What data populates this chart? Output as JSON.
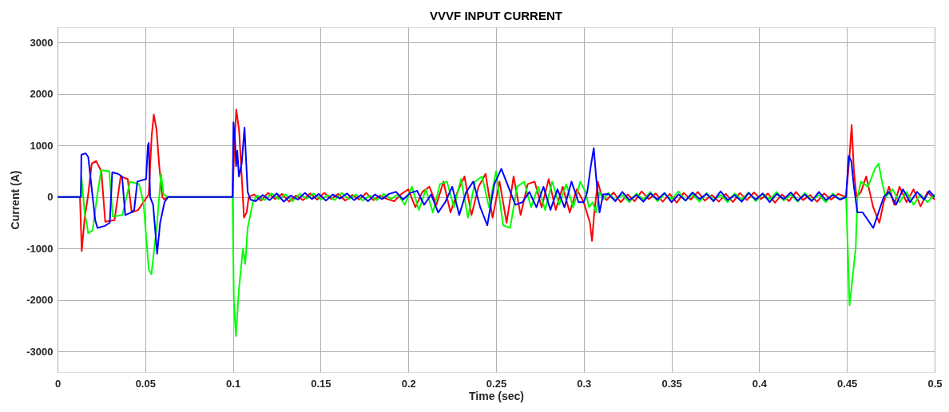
{
  "chart_data": {
    "type": "line",
    "title": "VVVF INPUT CURRENT",
    "xlabel": "Time (sec)",
    "ylabel": "Current (A)",
    "xlim": [
      0,
      0.5
    ],
    "xticks": [
      0,
      0.05,
      0.1,
      0.15,
      0.2,
      0.25,
      0.3,
      0.35,
      0.4,
      0.45,
      0.5
    ],
    "ylim": [
      -3400,
      3300
    ],
    "yticks": [
      -3000,
      -2000,
      -1000,
      0,
      1000,
      2000,
      3000
    ],
    "grid": true,
    "legend": false,
    "marker": "none",
    "line_style": "solid",
    "series": [
      {
        "color": "#ff0000",
        "x": [
          0,
          0.0128,
          0.0138,
          0.0155,
          0.0173,
          0.0195,
          0.022,
          0.025,
          0.0272,
          0.0325,
          0.036,
          0.04,
          0.0423,
          0.046,
          0.049,
          0.052,
          0.0537,
          0.0549,
          0.0565,
          0.058,
          0.0598,
          0.061,
          0.063,
          0.0998,
          0.1008,
          0.1019,
          0.1035,
          0.105,
          0.1063,
          0.1078,
          0.109,
          0.112,
          0.116,
          0.12,
          0.124,
          0.128,
          0.132,
          0.136,
          0.14,
          0.144,
          0.148,
          0.152,
          0.156,
          0.16,
          0.164,
          0.168,
          0.172,
          0.176,
          0.18,
          0.184,
          0.188,
          0.192,
          0.196,
          0.2,
          0.204,
          0.208,
          0.212,
          0.216,
          0.22,
          0.224,
          0.228,
          0.232,
          0.236,
          0.24,
          0.244,
          0.248,
          0.252,
          0.256,
          0.26,
          0.264,
          0.268,
          0.272,
          0.276,
          0.28,
          0.284,
          0.288,
          0.292,
          0.296,
          0.3,
          0.3035,
          0.3047,
          0.306,
          0.308,
          0.31,
          0.313,
          0.317,
          0.321,
          0.325,
          0.329,
          0.333,
          0.337,
          0.341,
          0.345,
          0.349,
          0.353,
          0.357,
          0.361,
          0.365,
          0.369,
          0.373,
          0.377,
          0.381,
          0.385,
          0.389,
          0.393,
          0.397,
          0.401,
          0.405,
          0.409,
          0.413,
          0.417,
          0.421,
          0.425,
          0.429,
          0.433,
          0.437,
          0.441,
          0.445,
          0.4495,
          0.4515,
          0.4527,
          0.454,
          0.4555,
          0.458,
          0.461,
          0.465,
          0.4685,
          0.471,
          0.474,
          0.477,
          0.48,
          0.484,
          0.488,
          0.492,
          0.496,
          0.5
        ],
        "values": [
          0,
          0,
          -1050,
          -400,
          0,
          650,
          700,
          500,
          -480,
          -450,
          400,
          350,
          -300,
          -250,
          -100,
          50,
          1200,
          1600,
          1300,
          600,
          0,
          -50,
          0,
          0,
          1000,
          1700,
          1300,
          400,
          -400,
          -300,
          0,
          50,
          -70,
          80,
          -40,
          60,
          -90,
          30,
          -60,
          70,
          -50,
          80,
          -40,
          60,
          -70,
          40,
          -50,
          80,
          -60,
          30,
          -40,
          -80,
          60,
          150,
          -200,
          100,
          200,
          -150,
          300,
          -300,
          100,
          400,
          -350,
          200,
          450,
          -400,
          300,
          -500,
          400,
          -350,
          250,
          300,
          -200,
          350,
          -250,
          200,
          -300,
          150,
          -100,
          -500,
          -850,
          -300,
          300,
          50,
          -60,
          90,
          -100,
          50,
          -80,
          110,
          -40,
          70,
          -90,
          60,
          -110,
          80,
          -50,
          100,
          -70,
          40,
          -90,
          60,
          -100,
          80,
          -60,
          90,
          -40,
          70,
          -110,
          50,
          -80,
          100,
          -60,
          40,
          -90,
          70,
          -50,
          60,
          0,
          800,
          1400,
          500,
          0,
          100,
          400,
          -200,
          -500,
          -100,
          200,
          -150,
          200,
          -100,
          150,
          -180,
          100,
          -50
        ]
      },
      {
        "color": "#00ff00",
        "x": [
          0,
          0.0133,
          0.0136,
          0.0155,
          0.0175,
          0.02,
          0.0225,
          0.0249,
          0.0295,
          0.0315,
          0.037,
          0.0413,
          0.0465,
          0.049,
          0.052,
          0.0535,
          0.0568,
          0.059,
          0.0605,
          0.063,
          0.0998,
          0.1005,
          0.1017,
          0.1034,
          0.1057,
          0.107,
          0.1084,
          0.1114,
          0.114,
          0.118,
          0.122,
          0.126,
          0.13,
          0.134,
          0.138,
          0.142,
          0.146,
          0.15,
          0.154,
          0.158,
          0.162,
          0.166,
          0.17,
          0.174,
          0.178,
          0.182,
          0.186,
          0.19,
          0.194,
          0.198,
          0.202,
          0.206,
          0.21,
          0.214,
          0.218,
          0.222,
          0.226,
          0.23,
          0.234,
          0.238,
          0.242,
          0.246,
          0.25,
          0.254,
          0.258,
          0.262,
          0.266,
          0.27,
          0.274,
          0.278,
          0.282,
          0.286,
          0.29,
          0.294,
          0.298,
          0.301,
          0.303,
          0.305,
          0.307,
          0.309,
          0.311,
          0.314,
          0.318,
          0.322,
          0.326,
          0.33,
          0.334,
          0.338,
          0.342,
          0.346,
          0.35,
          0.354,
          0.358,
          0.362,
          0.366,
          0.37,
          0.374,
          0.378,
          0.382,
          0.386,
          0.39,
          0.394,
          0.398,
          0.402,
          0.406,
          0.41,
          0.414,
          0.418,
          0.422,
          0.426,
          0.43,
          0.434,
          0.438,
          0.442,
          0.446,
          0.4495,
          0.4505,
          0.4515,
          0.4525,
          0.455,
          0.456,
          0.458,
          0.462,
          0.466,
          0.4681,
          0.47,
          0.472,
          0.476,
          0.48,
          0.484,
          0.488,
          0.492,
          0.496,
          0.5
        ],
        "values": [
          0,
          0,
          400,
          -300,
          -700,
          -650,
          0,
          520,
          500,
          -380,
          -350,
          300,
          250,
          -100,
          -1400,
          -1500,
          -500,
          450,
          50,
          0,
          0,
          -2000,
          -2700,
          -1800,
          -1000,
          -1300,
          -600,
          -100,
          30,
          -60,
          70,
          -40,
          50,
          -80,
          60,
          -30,
          70,
          -50,
          40,
          -60,
          80,
          -40,
          50,
          -70,
          30,
          -60,
          60,
          -40,
          50,
          -150,
          200,
          -250,
          150,
          -300,
          250,
          300,
          -200,
          350,
          -400,
          300,
          400,
          -200,
          500,
          -550,
          -600,
          200,
          300,
          -200,
          200,
          -250,
          300,
          -150,
          250,
          -200,
          300,
          100,
          -200,
          -100,
          -300,
          100,
          -50,
          80,
          -60,
          40,
          -100,
          70,
          -50,
          100,
          -80,
          60,
          -40,
          110,
          -70,
          50,
          -90,
          80,
          -60,
          40,
          -100,
          70,
          -50,
          90,
          -80,
          60,
          -40,
          100,
          -70,
          50,
          -90,
          80,
          -60,
          40,
          -100,
          70,
          -50,
          0,
          -1000,
          -2100,
          -1800,
          -1000,
          0,
          300,
          200,
          550,
          650,
          300,
          0,
          150,
          -100,
          100,
          -150,
          50,
          -100,
          50
        ]
      },
      {
        "color": "#0000ff",
        "x": [
          0,
          0.0133,
          0.0136,
          0.016,
          0.0175,
          0.0215,
          0.0228,
          0.027,
          0.0298,
          0.0312,
          0.0345,
          0.0368,
          0.0386,
          0.042,
          0.0437,
          0.0455,
          0.0475,
          0.0505,
          0.0515,
          0.052,
          0.0528,
          0.0545,
          0.0568,
          0.0585,
          0.061,
          0.063,
          0.0998,
          0.1003,
          0.1012,
          0.1018,
          0.1025,
          0.1034,
          0.105,
          0.1066,
          0.1084,
          0.11,
          0.113,
          0.117,
          0.121,
          0.125,
          0.129,
          0.133,
          0.137,
          0.141,
          0.145,
          0.149,
          0.153,
          0.157,
          0.161,
          0.165,
          0.169,
          0.173,
          0.177,
          0.181,
          0.185,
          0.189,
          0.193,
          0.197,
          0.201,
          0.205,
          0.209,
          0.213,
          0.217,
          0.221,
          0.225,
          0.229,
          0.233,
          0.237,
          0.241,
          0.245,
          0.249,
          0.253,
          0.257,
          0.261,
          0.265,
          0.269,
          0.273,
          0.277,
          0.281,
          0.285,
          0.289,
          0.293,
          0.297,
          0.3,
          0.302,
          0.304,
          0.3057,
          0.307,
          0.309,
          0.311,
          0.314,
          0.318,
          0.322,
          0.326,
          0.33,
          0.334,
          0.338,
          0.342,
          0.346,
          0.35,
          0.354,
          0.358,
          0.362,
          0.366,
          0.37,
          0.374,
          0.378,
          0.382,
          0.386,
          0.39,
          0.394,
          0.398,
          0.402,
          0.406,
          0.41,
          0.414,
          0.418,
          0.422,
          0.426,
          0.43,
          0.434,
          0.438,
          0.442,
          0.446,
          0.4495,
          0.451,
          0.4525,
          0.454,
          0.456,
          0.459,
          0.462,
          0.465,
          0.468,
          0.471,
          0.474,
          0.478,
          0.482,
          0.486,
          0.49,
          0.494,
          0.497,
          0.5
        ],
        "values": [
          0,
          0,
          820,
          850,
          780,
          -450,
          -600,
          -560,
          -500,
          480,
          450,
          400,
          -350,
          -300,
          -250,
          300,
          320,
          350,
          1000,
          1050,
          0,
          -150,
          -1100,
          -500,
          -100,
          0,
          0,
          1450,
          1100,
          600,
          900,
          400,
          650,
          1350,
          100,
          -50,
          -80,
          40,
          -60,
          70,
          -90,
          30,
          -50,
          80,
          -40,
          60,
          -70,
          50,
          -30,
          70,
          -60,
          40,
          -80,
          50,
          -40,
          60,
          100,
          -50,
          80,
          120,
          -150,
          50,
          -300,
          -100,
          200,
          -350,
          100,
          300,
          -200,
          -550,
          250,
          550,
          200,
          -150,
          -100,
          100,
          -200,
          200,
          -250,
          150,
          -200,
          300,
          -100,
          -100,
          100,
          600,
          950,
          400,
          -300,
          50,
          60,
          -80,
          100,
          -60,
          40,
          -90,
          70,
          -50,
          80,
          -100,
          50,
          -70,
          90,
          -40,
          60,
          -80,
          110,
          -60,
          40,
          -90,
          80,
          -50,
          70,
          -100,
          60,
          -40,
          90,
          -70,
          50,
          -80,
          100,
          -60,
          40,
          -50,
          0,
          800,
          700,
          200,
          -300,
          -300,
          -450,
          -600,
          -300,
          0,
          100,
          -150,
          150,
          -100,
          100,
          -50,
          120,
          0
        ]
      }
    ]
  }
}
